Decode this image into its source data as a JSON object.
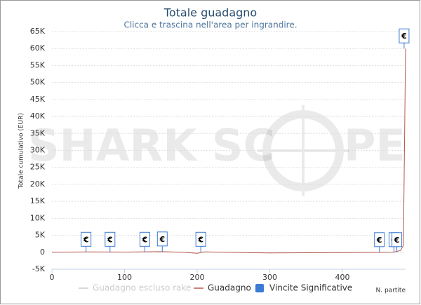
{
  "chart_data": {
    "type": "line",
    "title": "Totale guadagno",
    "subtitle": "Clicca e trascina nell'area per ingrandire.",
    "y_label": "Totale cumulativo (EUR)",
    "x_label": "N. partite",
    "watermark": [
      "SHARK SC",
      "PE"
    ],
    "xlim": [
      0,
      487
    ],
    "xticks": [
      0,
      100,
      200,
      300,
      400
    ],
    "ylim": [
      -5000,
      65000
    ],
    "yticks": [
      {
        "value": -5000,
        "label": "-5K"
      },
      0,
      {
        "value": 5000,
        "label": "5K"
      },
      {
        "value": 10000,
        "label": "10K"
      },
      {
        "value": 15000,
        "label": "15K"
      },
      {
        "value": 20000,
        "label": "20K"
      },
      {
        "value": 25000,
        "label": "25K"
      },
      {
        "value": 30000,
        "label": "30K"
      },
      {
        "value": 35000,
        "label": "35K"
      },
      {
        "value": 40000,
        "label": "40K"
      },
      {
        "value": 45000,
        "label": "45K"
      },
      {
        "value": 50000,
        "label": "50K"
      },
      {
        "value": 55000,
        "label": "55K"
      },
      {
        "value": 60000,
        "label": "60K"
      },
      {
        "value": 65000,
        "label": "65K"
      }
    ],
    "grid": true,
    "series": [
      {
        "name": "Guadagno escluso rake",
        "color": "#cccccc",
        "visible": false
      },
      {
        "name": "Guadagno",
        "color": "#b5574b",
        "x": [
          0,
          50,
          100,
          150,
          180,
          200,
          210,
          300,
          400,
          470,
          480,
          484,
          487
        ],
        "values": [
          0,
          100,
          50,
          200,
          0,
          -300,
          100,
          -200,
          -100,
          0,
          500,
          2000,
          60000
        ]
      },
      {
        "name": "Vincite Significative",
        "type": "flags",
        "color": "#3a7bd5",
        "label": "€",
        "x": [
          47,
          80,
          128,
          152,
          205,
          451,
          471,
          475,
          485
        ],
        "values": [
          100,
          100,
          100,
          200,
          100,
          0,
          0,
          0,
          60000
        ]
      }
    ]
  }
}
